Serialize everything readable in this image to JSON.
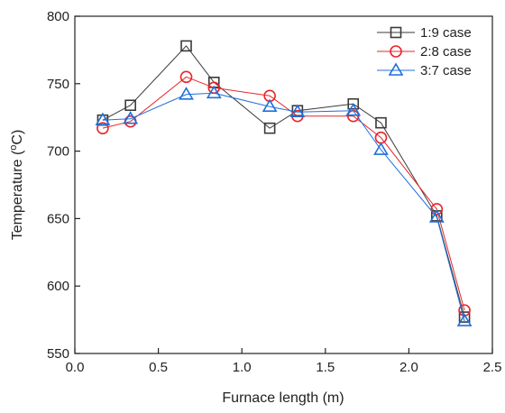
{
  "chart_data": {
    "type": "line",
    "xlabel": "Furnace length (m)",
    "ylabel_main": "Temperature (",
    "ylabel_sup": "o",
    "ylabel_end": "C)",
    "xlim": [
      0.0,
      2.5
    ],
    "ylim": [
      550,
      800
    ],
    "xticks": [
      0.0,
      0.5,
      1.0,
      1.5,
      2.0,
      2.5
    ],
    "xtick_labels": [
      "0.0",
      "0.5",
      "1.0",
      "1.5",
      "2.0",
      "2.5"
    ],
    "yticks": [
      550,
      600,
      650,
      700,
      750,
      800
    ],
    "ytick_labels": [
      "550",
      "600",
      "650",
      "700",
      "750",
      "800"
    ],
    "grid": false,
    "legend_position": "top-right",
    "x": [
      0.167,
      0.333,
      0.667,
      0.833,
      1.167,
      1.333,
      1.667,
      1.833,
      2.167,
      2.333
    ],
    "series": [
      {
        "name": "1:9 case",
        "marker": "square",
        "color": "#3a3a3a",
        "values": [
          723,
          734,
          778,
          751,
          717,
          730,
          735,
          721,
          652,
          577
        ]
      },
      {
        "name": "2:8 case",
        "marker": "circle",
        "color": "#e8242a",
        "values": [
          717,
          722,
          755,
          747,
          741,
          726,
          726,
          710,
          657,
          582
        ]
      },
      {
        "name": "3:7 case",
        "marker": "triangle",
        "color": "#1f6fdb",
        "values": [
          723,
          724,
          742,
          743,
          733,
          729,
          730,
          701,
          651,
          574
        ]
      }
    ]
  }
}
